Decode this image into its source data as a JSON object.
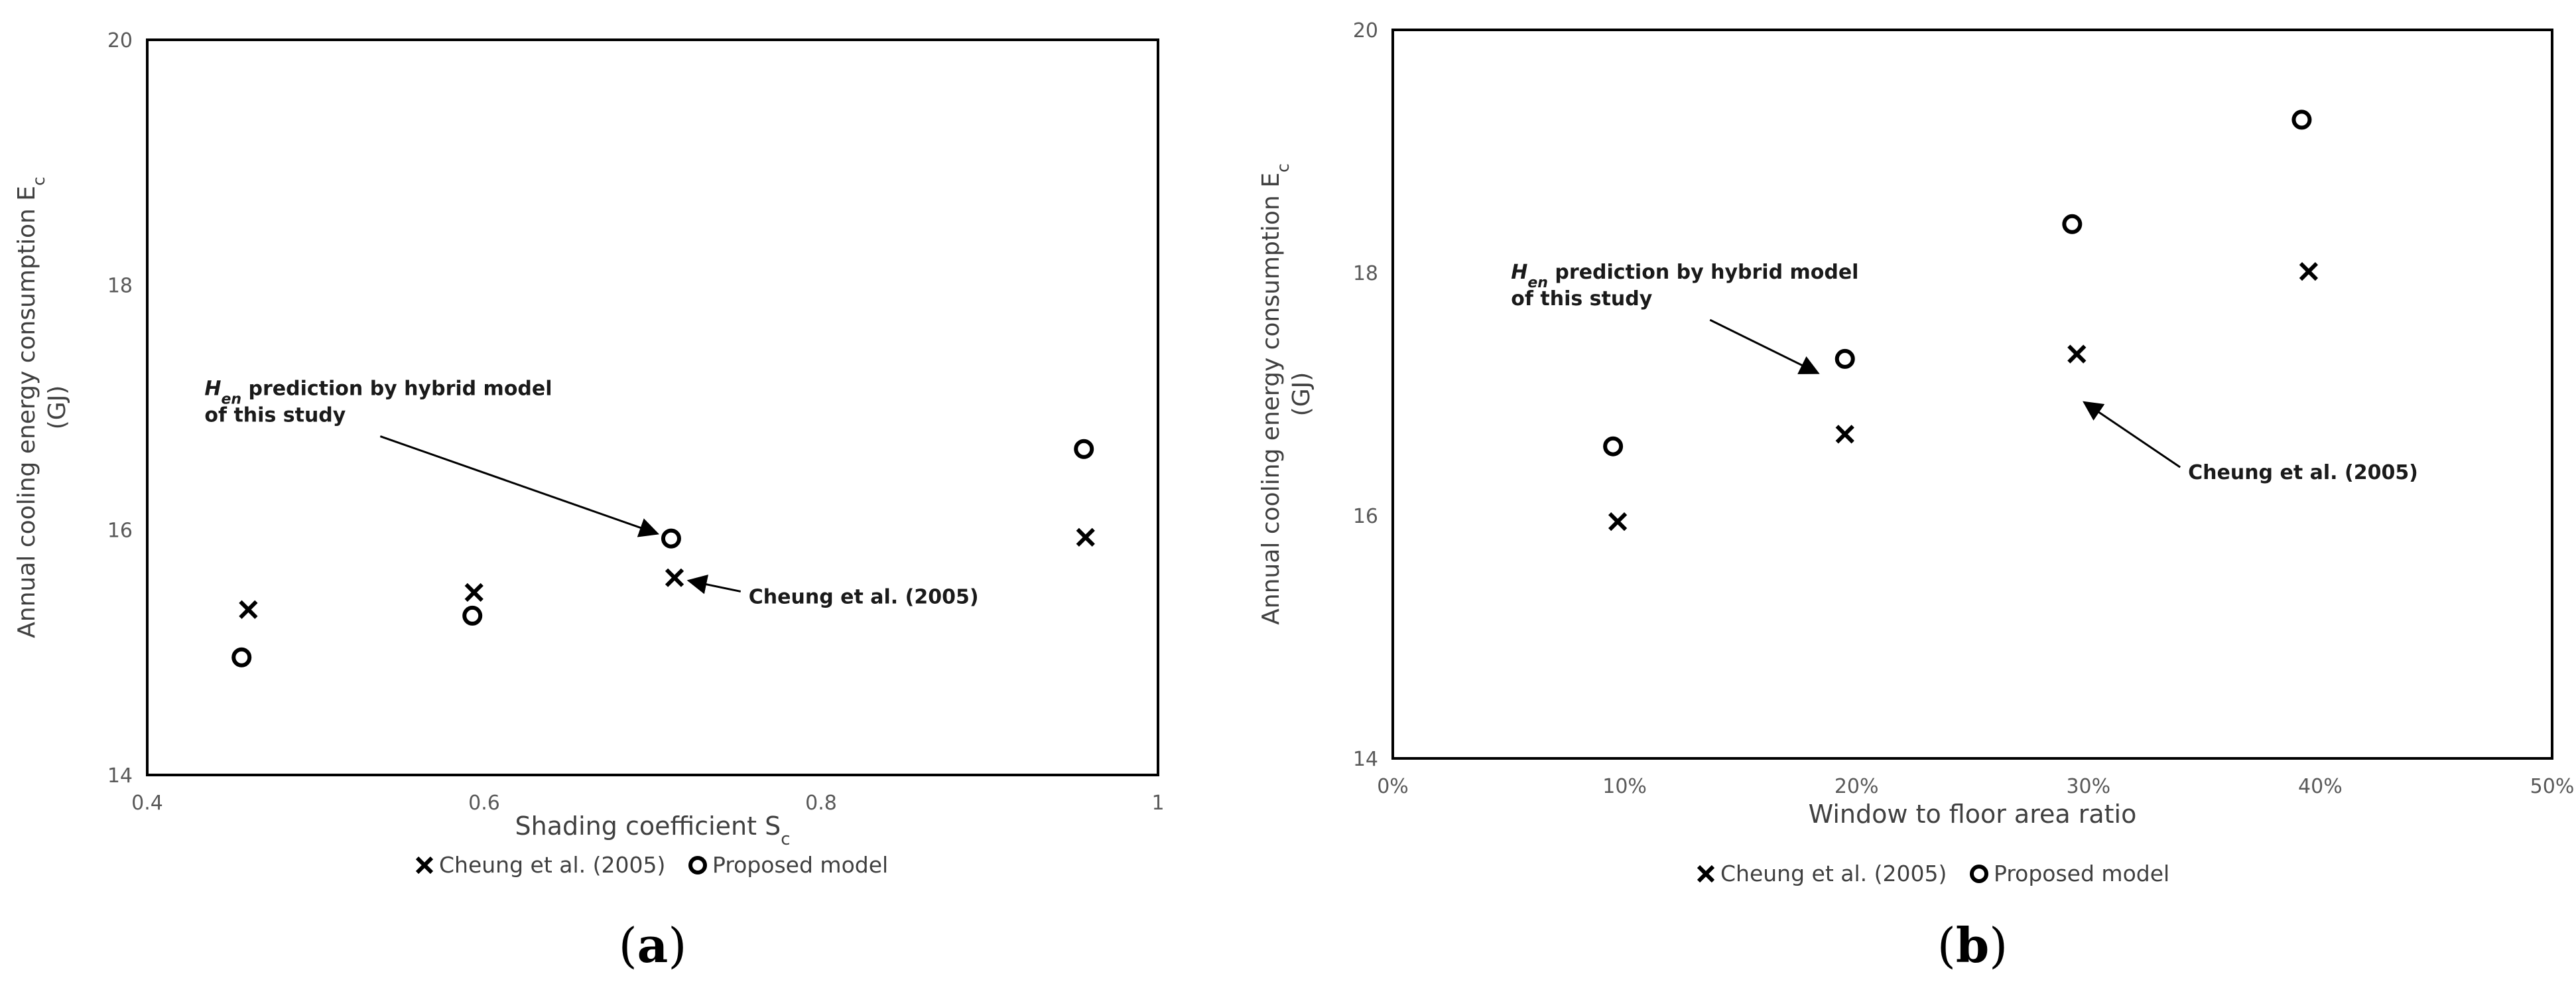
{
  "chart_data": [
    {
      "type": "scatter",
      "panel_label": "(a)",
      "xlabel": "Shading coefficient S",
      "xlabel_sub": "c",
      "ylabel_line1": "Annual cooling energy consumption E",
      "ylabel_sub": "c",
      "ylabel_line2": "(GJ)",
      "xlim": [
        0.4,
        1.0
      ],
      "ylim": [
        14,
        20
      ],
      "xticks": [
        0.4,
        0.6,
        0.8,
        1.0
      ],
      "xtick_labels": [
        "0.4",
        "0.6",
        "0.8",
        "1"
      ],
      "yticks": [
        14,
        16,
        18,
        20
      ],
      "ytick_labels": [
        "14",
        "16",
        "18",
        "20"
      ],
      "grid": false,
      "legend_position": "bottom",
      "series": [
        {
          "name": "Cheung et al. (2005)",
          "marker": "x",
          "points": [
            [
              0.46,
              15.35
            ],
            [
              0.594,
              15.49
            ],
            [
              0.713,
              15.61
            ],
            [
              0.957,
              15.94
            ]
          ]
        },
        {
          "name": "Proposed model",
          "marker": "o",
          "points": [
            [
              0.456,
              14.96
            ],
            [
              0.593,
              15.3
            ],
            [
              0.711,
              15.93
            ],
            [
              0.956,
              16.66
            ]
          ]
        }
      ],
      "annotations": [
        {
          "text_italic": "H",
          "text_sub": "en",
          "text_line1": " prediction by hybrid model",
          "text_line2": "of this study",
          "at": [
            0.434,
            17.1
          ],
          "arrow_to": [
            0.711,
            15.93
          ]
        },
        {
          "text_line1": "Cheung et al. (2005)",
          "at": [
            0.757,
            15.4
          ],
          "arrow_to": [
            0.713,
            15.61
          ]
        }
      ]
    },
    {
      "type": "scatter",
      "panel_label": "(b)",
      "xlabel": "Window to floor area ratio",
      "ylabel_line1": "Annual cooling energy consumption E",
      "ylabel_sub": "c",
      "ylabel_line2": "(GJ)",
      "xlim": [
        0,
        50
      ],
      "ylim": [
        14,
        20
      ],
      "xticks": [
        0,
        10,
        20,
        30,
        40,
        50
      ],
      "xtick_labels": [
        "0%",
        "10%",
        "20%",
        "30%",
        "40%",
        "50%"
      ],
      "yticks": [
        14,
        16,
        18,
        20
      ],
      "ytick_labels": [
        "14",
        "16",
        "18",
        "20"
      ],
      "grid": false,
      "legend_position": "bottom",
      "series": [
        {
          "name": "Cheung et al. (2005)",
          "marker": "x",
          "points": [
            [
              9.7,
              15.95
            ],
            [
              19.5,
              16.67
            ],
            [
              29.5,
              17.33
            ],
            [
              39.5,
              18.01
            ]
          ]
        },
        {
          "name": "Proposed model",
          "marker": "o",
          "points": [
            [
              9.5,
              16.57
            ],
            [
              19.5,
              17.29
            ],
            [
              29.3,
              18.4
            ],
            [
              39.2,
              19.26
            ]
          ]
        }
      ],
      "annotations": [
        {
          "text_italic": "H",
          "text_sub": "en",
          "text_line1": " prediction by hybrid model",
          "text_line2": "of this study",
          "at": [
            5.1,
            17.95
          ],
          "arrow_to": [
            18.9,
            17.12
          ]
        },
        {
          "text_line1": "Cheung et al. (2005)",
          "at": [
            34.3,
            16.3
          ],
          "arrow_to": [
            29.3,
            17.0
          ]
        }
      ]
    }
  ]
}
